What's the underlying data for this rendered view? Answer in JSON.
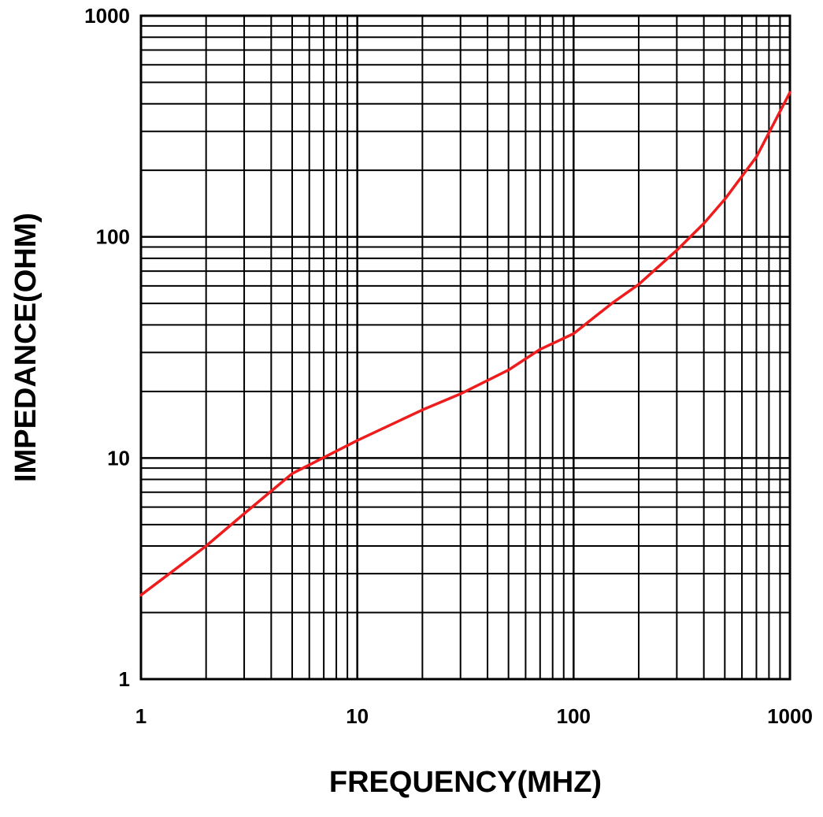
{
  "chart_data": {
    "type": "line",
    "xscale": "log",
    "yscale": "log",
    "xlabel": "FREQUENCY(MHZ)",
    "ylabel": "IMPEDANCE(OHM)",
    "xlim": [
      1,
      1000
    ],
    "ylim": [
      1,
      1000
    ],
    "x_ticks": [
      {
        "value": 1,
        "label": "1"
      },
      {
        "value": 10,
        "label": "10"
      },
      {
        "value": 100,
        "label": "100"
      },
      {
        "value": 1000,
        "label": "1000"
      }
    ],
    "y_ticks": [
      {
        "value": 1,
        "label": "1"
      },
      {
        "value": 10,
        "label": "10"
      },
      {
        "value": 100,
        "label": "100"
      },
      {
        "value": 1000,
        "label": "1000"
      }
    ],
    "grid": "major+minor",
    "colors": {
      "line": "#ee1c1c",
      "grid": "#000000"
    },
    "series": [
      {
        "x": [
          1,
          2,
          3,
          5,
          10,
          20,
          30,
          50,
          70,
          100,
          150,
          200,
          300,
          400,
          500,
          700,
          1000
        ],
        "y": [
          2.4,
          4.0,
          5.6,
          8.5,
          12,
          16.5,
          19.5,
          25,
          31,
          36.5,
          50,
          61,
          87,
          115,
          148,
          230,
          450
        ]
      }
    ]
  }
}
